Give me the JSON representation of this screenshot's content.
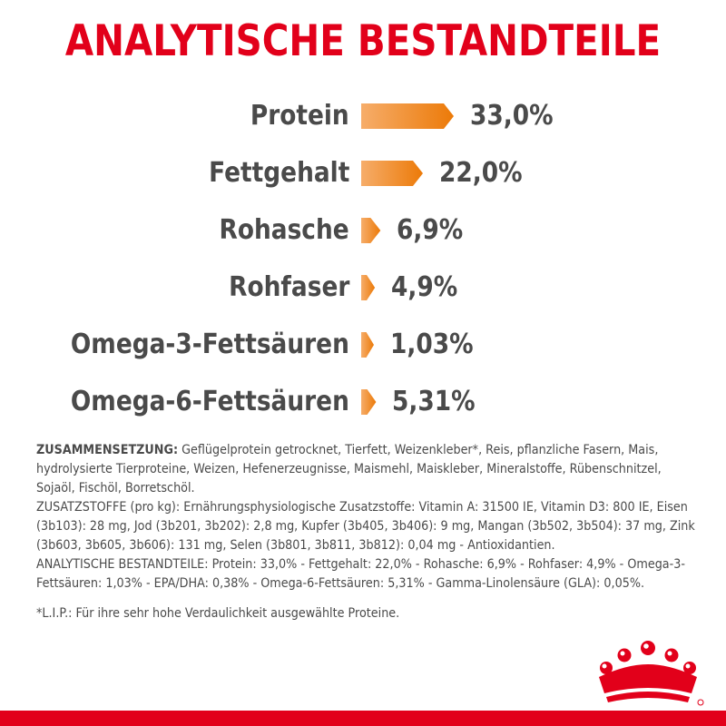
{
  "title": "ANALYTISCHE BESTANDTEILE",
  "nutrients": [
    {
      "label": "Protein",
      "value": "33,0%",
      "amount": 33.0
    },
    {
      "label": "Fettgehalt",
      "value": "22,0%",
      "amount": 22.0
    },
    {
      "label": "Rohasche",
      "value": "6,9%",
      "amount": 6.9
    },
    {
      "label": "Rohfaser",
      "value": "4,9%",
      "amount": 4.9
    },
    {
      "label": "Omega-3-Fettsäuren",
      "value": "1,03%",
      "amount": 1.03
    },
    {
      "label": "Omega-6-Fettsäuren",
      "value": "5,31%",
      "amount": 5.31
    }
  ],
  "composition": {
    "heading": "ZUSAMMENSETZUNG:",
    "ingredients": " Geflügelprotein getrocknet, Tierfett, Weizenkleber*, Reis, pflanzliche Fasern, Mais, hydrolysierte Tierproteine, Weizen, Hefenerzeugnisse, Maismehl, Maiskleber, Mineralstoffe, Rübenschnitzel, Sojaöl, Fischöl, Borretschöl.",
    "additives": "ZUSATZSTOFFE (pro kg): Ernährungsphysiologische Zusatzstoffe: Vitamin A: 31500 IE, Vitamin D3: 800 IE, Eisen (3b103): 28 mg, Jod (3b201, 3b202): 2,8 mg, Kupfer (3b405, 3b406): 9 mg, Mangan (3b502, 3b504): 37 mg, Zink (3b603, 3b605, 3b606): 131 mg, Selen (3b801, 3b811, 3b812): 0,04 mg - Antioxidantien.",
    "analysis": "ANALYTISCHE BESTANDTEILE: Protein: 33,0% - Fettgehalt: 22,0% - Rohasche: 6,9% - Rohfaser: 4,9% - Omega-3-Fettsäuren: 1,03% - EPA/DHA: 0,38% - Omega-6-Fettsäuren: 5,31% - Gamma-Linolensäure (GLA): 0,05%."
  },
  "footnote": "*L.I.P.: Für ihre sehr hohe Verdaulichkeit ausgewählte Proteine.",
  "colors": {
    "brand_red": "#e2001a",
    "bar_light": "#f6ad6a",
    "bar_dark": "#ec7a08",
    "text": "#4a4a4a"
  },
  "logo_icon": "crown-icon"
}
